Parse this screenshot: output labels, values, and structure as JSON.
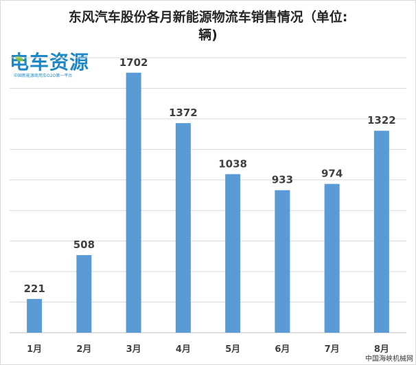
{
  "chart_data": {
    "type": "bar",
    "title_line1": "东风汽车股份各月新能源物流车销售情况（单位:",
    "title_line2": "辆)",
    "categories": [
      "1月",
      "2月",
      "3月",
      "4月",
      "5月",
      "6月",
      "7月",
      "8月"
    ],
    "values": [
      221,
      508,
      1702,
      1372,
      1038,
      933,
      974,
      1322
    ],
    "ylim": [
      0,
      1800
    ],
    "grid": true,
    "bar_color": "#5b9bd5",
    "grid_color": "#d9d9d9"
  },
  "logo": {
    "text": "电车资源",
    "sub": "中国新能源商用车O2O第一平台"
  },
  "watermark": "中国海峡机械网"
}
